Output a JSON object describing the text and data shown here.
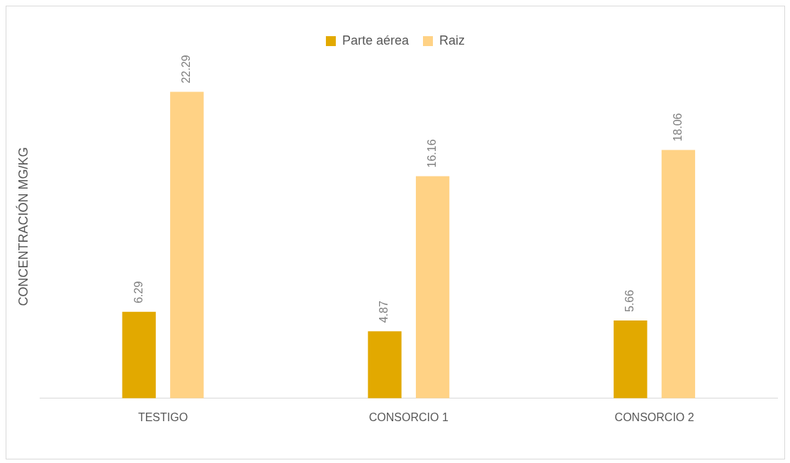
{
  "chart_data": {
    "type": "bar",
    "ylabel": "CONCENTRACIÓN MG/KG",
    "categories": [
      "TESTIGO",
      "CONSORCIO 1",
      "CONSORCIO 2"
    ],
    "series": [
      {
        "name": "Parte aérea",
        "color": "#e2a900",
        "values": [
          6.29,
          4.87,
          5.66
        ]
      },
      {
        "name": "Raiz",
        "color": "#ffd285",
        "values": [
          22.29,
          16.16,
          18.06
        ]
      }
    ],
    "data_labels": true,
    "legend": "top",
    "grid": false
  }
}
